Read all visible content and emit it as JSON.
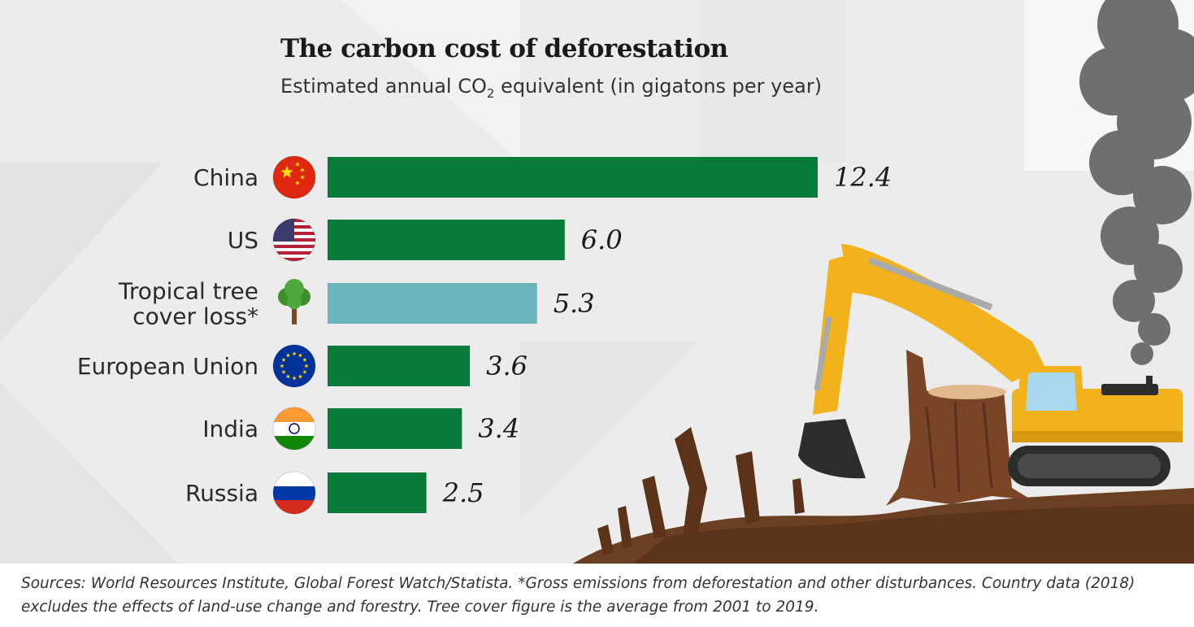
{
  "title": "The carbon cost of deforestation",
  "subtitle_main": "Estimated annual CO",
  "subtitle_sub": "2",
  "subtitle_rest": " equivalent (in gigatons per year)",
  "footer": "Sources: World Resources Institute, Global Forest Watch/Statista. *Gross emissions from deforestation and other disturbances. Country data (2018) excludes the effects of land-use change and forestry. Tree cover figure is the average from 2001 to 2019.",
  "colors": {
    "country_bar": "#087a3a",
    "tree_cover_bar": "#6cb4bc",
    "background": "#ececec"
  },
  "chart_data": {
    "type": "bar",
    "orientation": "horizontal",
    "title": "The carbon cost of deforestation",
    "subtitle": "Estimated annual CO2 equivalent (in gigatons per year)",
    "categories": [
      {
        "label": [
          "China"
        ],
        "value": 12.4,
        "value_label": "12.4",
        "icon": "china-flag-icon",
        "color": "#087a3a"
      },
      {
        "label": [
          "US"
        ],
        "value": 6.0,
        "value_label": "6.0",
        "icon": "us-flag-icon",
        "color": "#087a3a"
      },
      {
        "label": [
          "Tropical tree",
          "cover loss*"
        ],
        "value": 5.3,
        "value_label": "5.3",
        "icon": "tree-icon",
        "color": "#6cb4bc"
      },
      {
        "label": [
          "European Union"
        ],
        "value": 3.6,
        "value_label": "3.6",
        "icon": "eu-flag-icon",
        "color": "#087a3a"
      },
      {
        "label": [
          "India"
        ],
        "value": 3.4,
        "value_label": "3.4",
        "icon": "india-flag-icon",
        "color": "#087a3a"
      },
      {
        "label": [
          "Russia"
        ],
        "value": 2.5,
        "value_label": "2.5",
        "icon": "russia-flag-icon",
        "color": "#087a3a"
      }
    ],
    "xlim": [
      0,
      12.4
    ],
    "grid": false,
    "legend": "none"
  }
}
